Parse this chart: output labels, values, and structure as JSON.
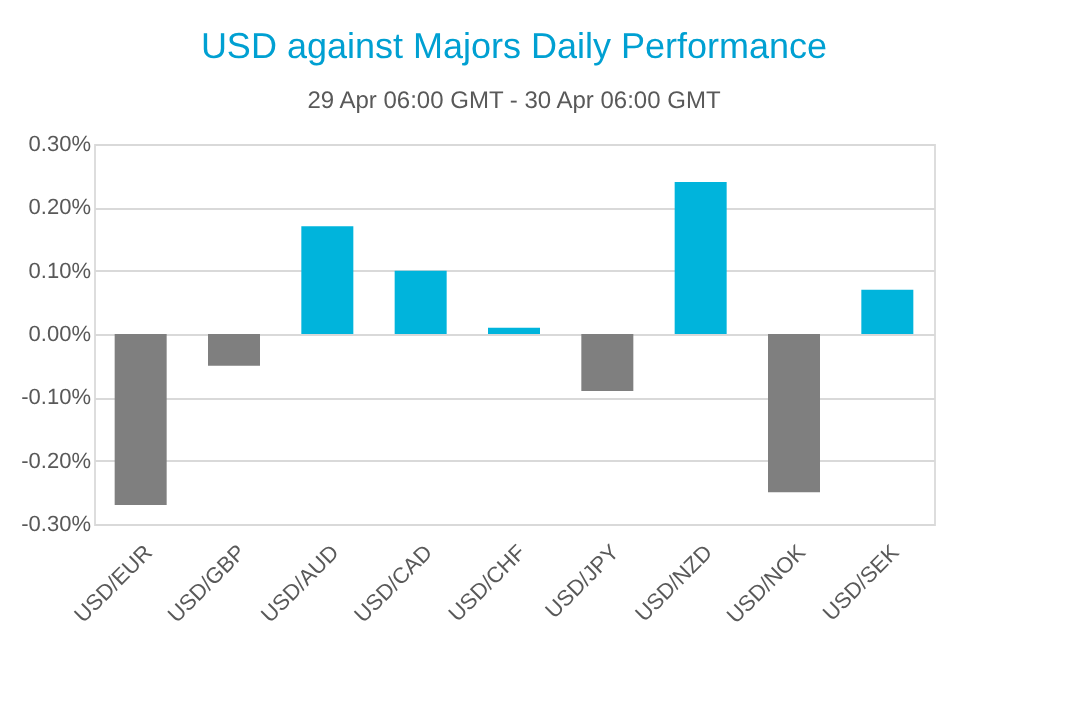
{
  "chart_data": {
    "type": "bar",
    "title": "USD against Majors Daily Performance",
    "subtitle": "29 Apr 06:00 GMT - 30 Apr 06:00 GMT",
    "categories": [
      "USD/EUR",
      "USD/GBP",
      "USD/AUD",
      "USD/CAD",
      "USD/CHF",
      "USD/JPY",
      "USD/NZD",
      "USD/NOK",
      "USD/SEK"
    ],
    "values": [
      -0.27,
      -0.05,
      0.17,
      0.1,
      0.01,
      -0.09,
      0.24,
      -0.25,
      0.07
    ],
    "colors": [
      "#7f7f7f",
      "#7f7f7f",
      "#00b4dc",
      "#00b4dc",
      "#00b4dc",
      "#7f7f7f",
      "#00b4dc",
      "#7f7f7f",
      "#00b4dc"
    ],
    "ylim": [
      -0.3,
      0.3
    ],
    "yticks": [
      {
        "value": -0.3,
        "label": "-0.30%"
      },
      {
        "value": -0.2,
        "label": "-0.20%"
      },
      {
        "value": -0.1,
        "label": "-0.10%"
      },
      {
        "value": 0,
        "label": "0.00%"
      },
      {
        "value": 0.1,
        "label": "0.10%"
      },
      {
        "value": 0.2,
        "label": "0.20%"
      },
      {
        "value": 0.3,
        "label": "0.30%"
      }
    ],
    "grid": "y",
    "legend": false
  }
}
